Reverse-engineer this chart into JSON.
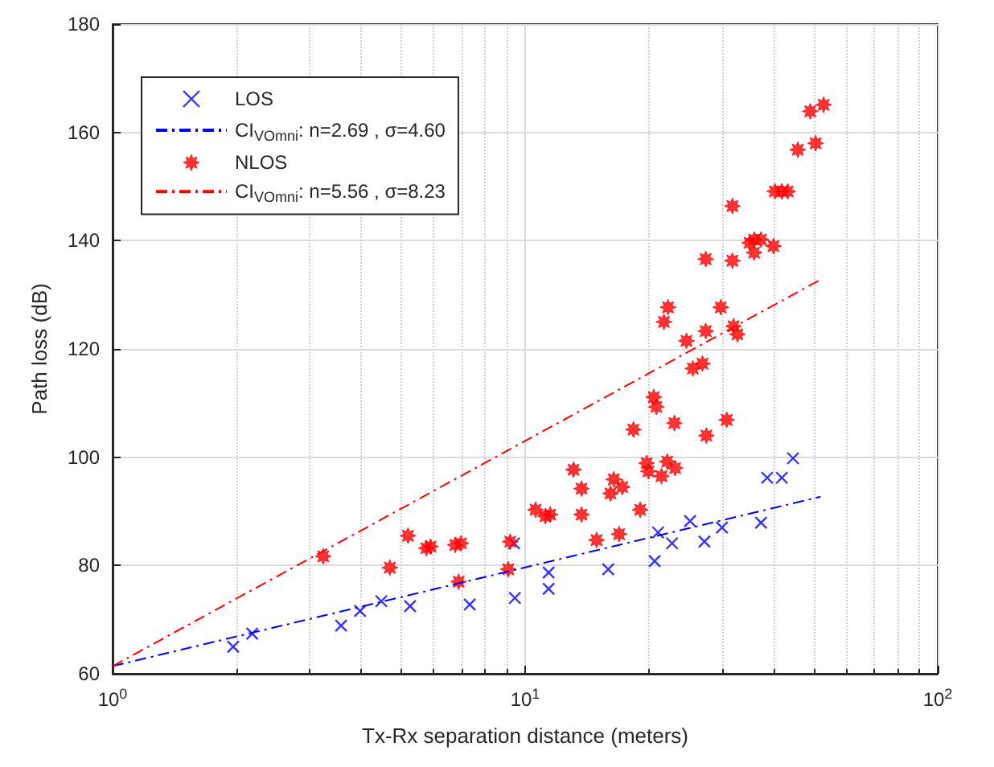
{
  "chart_data": {
    "type": "scatter",
    "xlabel": "Tx-Rx separation distance (meters)",
    "ylabel": "Path loss (dB)",
    "log": "x",
    "xlim": [
      1,
      100
    ],
    "xticks": [
      {
        "value": 1,
        "label": "10$^{0}$"
      },
      {
        "value": 10,
        "label": "10$^{1}$"
      },
      {
        "value": 100,
        "label": "10$^{2}$"
      }
    ],
    "ylim": [
      60,
      180
    ],
    "yticks": [
      60,
      80,
      100,
      120,
      140,
      160,
      180
    ],
    "grid": true,
    "legend": "top left",
    "series": [
      {
        "name": "LOS",
        "marker": "cross",
        "color": "#0000ff",
        "x": [
          1.96,
          2.18,
          3.58,
          3.98,
          4.48,
          5.26,
          7.34,
          9.44,
          9.4,
          11.4,
          11.4,
          15.9,
          20.6,
          21.0,
          22.7,
          25.1,
          27.2,
          30.0,
          37.3,
          38.6,
          41.9,
          44.6
        ],
        "values": [
          65.0,
          67.4,
          68.9,
          71.6,
          73.4,
          72.5,
          72.8,
          74.0,
          84.1,
          75.7,
          78.7,
          79.3,
          80.8,
          86.1,
          84.1,
          88.2,
          84.4,
          87.0,
          87.9,
          96.2,
          96.2,
          99.8
        ]
      },
      {
        "name": "CI$_{VOmni}$: n=2.69 , σ=4.60",
        "type": "line",
        "marker": "none",
        "line_style": "dashed",
        "color": "#0000ff",
        "x": [
          1,
          52
        ],
        "values": [
          61.4,
          92.7
        ]
      },
      {
        "name": "NLOS",
        "marker": "star",
        "color": "#ff0000",
        "x": [
          3.24,
          4.7,
          5.2,
          5.76,
          5.9,
          6.77,
          6.99,
          6.9,
          9.1,
          9.2,
          10.6,
          11.2,
          11.5,
          13.1,
          13.7,
          13.7,
          14.9,
          16.4,
          16.1,
          17.2,
          16.9,
          19.0,
          18.3,
          19.7,
          19.9,
          21.4,
          22.1,
          23.1,
          23.0,
          27.5,
          30.8,
          20.8,
          20.5,
          25.5,
          26.9,
          24.6,
          27.4,
          21.7,
          22.2,
          29.8,
          32.0,
          32.7,
          27.4,
          31.8,
          31.8,
          35.0,
          35.9,
          35.9,
          37.3,
          40.0,
          40.3,
          41.9,
          43.3,
          45.8,
          50.6,
          49.1,
          52.9
        ],
        "values": [
          81.7,
          79.6,
          85.5,
          83.2,
          83.5,
          83.8,
          84.1,
          77.0,
          79.3,
          84.4,
          90.3,
          89.1,
          89.4,
          97.7,
          94.2,
          89.4,
          84.7,
          95.9,
          93.3,
          94.5,
          85.8,
          90.3,
          105.1,
          98.9,
          97.4,
          96.5,
          99.2,
          98.0,
          106.3,
          104.0,
          106.9,
          109.3,
          111.1,
          116.4,
          117.3,
          121.5,
          123.3,
          125.0,
          127.7,
          127.7,
          124.2,
          122.7,
          136.6,
          136.3,
          146.4,
          139.6,
          140.2,
          137.8,
          140.2,
          139.0,
          149.1,
          149.1,
          149.1,
          156.8,
          158.0,
          163.9,
          165.1
        ]
      },
      {
        "name": "CI$_{VOmni}$: n=5.56 , σ=8.23",
        "type": "line",
        "marker": "none",
        "line_style": "dashed",
        "color": "#ff0000",
        "x": [
          1,
          52
        ],
        "values": [
          61.4,
          132.8
        ]
      }
    ]
  }
}
